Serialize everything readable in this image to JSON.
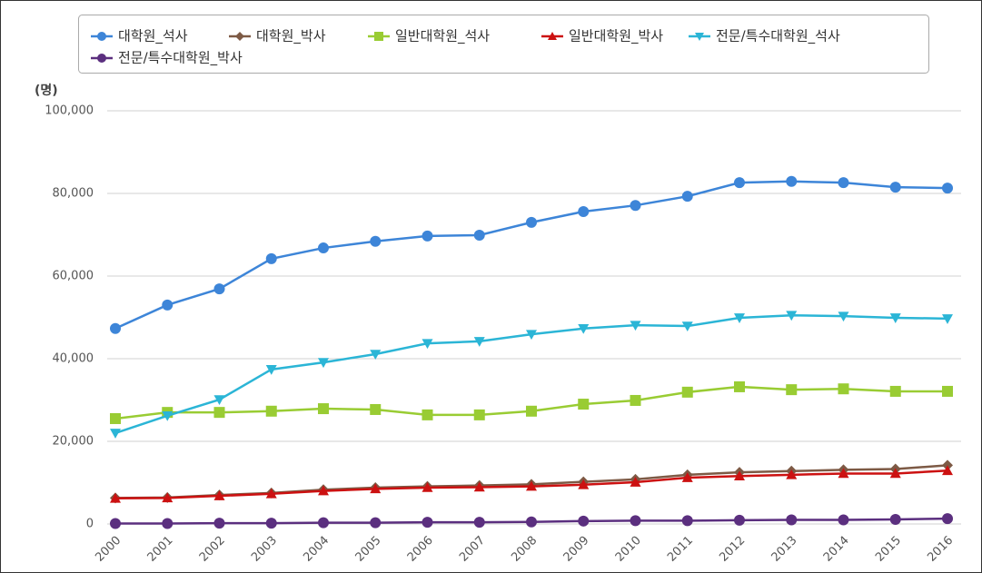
{
  "chart_data": {
    "type": "line",
    "y_unit": "(명)",
    "x": [
      "2000",
      "2001",
      "2002",
      "2003",
      "2004",
      "2005",
      "2006",
      "2007",
      "2008",
      "2009",
      "2010",
      "2011",
      "2012",
      "2013",
      "2014",
      "2015",
      "2016"
    ],
    "ylim": [
      0,
      100000
    ],
    "yticks": [
      0,
      {
        "value": 20000,
        "label": "20,000"
      },
      {
        "value": 40000,
        "label": "40,000"
      },
      {
        "value": 60000,
        "label": "60,000"
      },
      {
        "value": 80000,
        "label": "80,000"
      },
      {
        "value": 100000,
        "label": "100,000"
      }
    ],
    "grid": true,
    "legend": "top",
    "series": [
      {
        "name": "대학원_석사",
        "color": "#3d85d8",
        "marker": "circle",
        "values": [
          47300,
          53000,
          56900,
          64200,
          66800,
          68400,
          69700,
          69900,
          73000,
          75600,
          77100,
          79300,
          82600,
          82900,
          82600,
          81500,
          81300
        ]
      },
      {
        "name": "대학원_박사",
        "color": "#7d5a45",
        "marker": "diamond",
        "values": [
          6300,
          6400,
          7000,
          7500,
          8300,
          8800,
          9100,
          9300,
          9600,
          10200,
          10800,
          11900,
          12500,
          12800,
          13100,
          13300,
          14200
        ]
      },
      {
        "name": "일반대학원_석사",
        "color": "#99cc33",
        "marker": "square",
        "values": [
          25500,
          27000,
          27000,
          27300,
          27900,
          27700,
          26400,
          26400,
          27300,
          29000,
          29900,
          31900,
          33200,
          32500,
          32700,
          32100,
          32100
        ]
      },
      {
        "name": "일반대학원_박사",
        "color": "#cc1111",
        "marker": "triangle-up",
        "values": [
          6200,
          6300,
          6800,
          7300,
          8000,
          8500,
          8800,
          8900,
          9100,
          9500,
          10100,
          11200,
          11600,
          11900,
          12200,
          12200,
          12900
        ]
      },
      {
        "name": "전문/특수대학원_석사",
        "color": "#2bb5d6",
        "marker": "triangle-down",
        "values": [
          22000,
          26200,
          30100,
          37400,
          39100,
          41100,
          43700,
          44200,
          45900,
          47300,
          48100,
          47900,
          49900,
          50500,
          50300,
          49900,
          49700
        ]
      },
      {
        "name": "전문/특수대학원_박사",
        "color": "#5b2f7f",
        "marker": "circle",
        "values": [
          100,
          100,
          200,
          200,
          300,
          300,
          400,
          400,
          500,
          700,
          800,
          800,
          900,
          1000,
          1000,
          1100,
          1300
        ]
      }
    ]
  }
}
